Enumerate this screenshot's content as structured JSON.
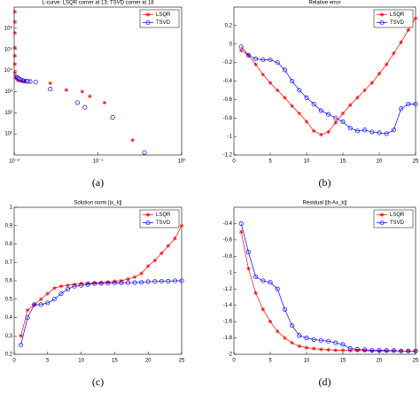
{
  "chart_data": [
    {
      "type": "scatter",
      "title": "L-curve: LSQR corner at 13;  TSVD corner at 18",
      "caption": "(a)",
      "xscale": "log",
      "yscale": "log",
      "xlim": [
        0.01,
        1
      ],
      "xticks": [
        {
          "value": 0.01,
          "label": "10⁻²"
        },
        {
          "value": 0.1,
          "label": "10⁻¹"
        },
        {
          "value": 1,
          "label": "10⁰"
        }
      ],
      "ylim": [
        1,
        10000000
      ],
      "yticks": [
        {
          "value": 10,
          "label": "10¹"
        },
        {
          "value": 100,
          "label": "10²"
        },
        {
          "value": 1000,
          "label": "10³"
        },
        {
          "value": 10000,
          "label": "10⁴"
        },
        {
          "value": 100000,
          "label": "10⁵"
        },
        {
          "value": 1000000,
          "label": "10⁶"
        }
      ],
      "legend": "upper right",
      "series": [
        {
          "name": "LSQR",
          "color": "#ff0000",
          "marker": "star",
          "x": [
            0.0102,
            0.0102,
            0.0102,
            0.0102,
            0.0102,
            0.0102,
            0.0102,
            0.0104,
            0.0107,
            0.011,
            0.0115,
            0.0125,
            0.0135,
            0.027,
            0.042,
            0.065,
            0.08,
            0.12,
            0.26
          ],
          "values": [
            6000000,
            2000000,
            600000,
            120000,
            50000,
            20000,
            8000,
            5000,
            4000,
            3500,
            3300,
            3100,
            3000,
            2500,
            1200,
            1000,
            600,
            300,
            5
          ]
        },
        {
          "name": "TSVD",
          "color": "#0000ff",
          "marker": "circle",
          "x": [
            0.0105,
            0.011,
            0.0115,
            0.012,
            0.0125,
            0.013,
            0.014,
            0.0145,
            0.0155,
            0.018,
            0.027,
            0.057,
            0.07,
            0.15,
            0.36
          ],
          "values": [
            5000,
            4500,
            4000,
            3600,
            3400,
            3200,
            3100,
            3050,
            3000,
            2800,
            1300,
            300,
            180,
            60,
            1.3
          ]
        }
      ]
    },
    {
      "type": "line",
      "title": "Relative error",
      "caption": "(b)",
      "xlim": [
        0,
        25
      ],
      "xticks": [
        0,
        5,
        10,
        15,
        20,
        25
      ],
      "ylim": [
        -1.2,
        0.4
      ],
      "yticks": [
        -1.2,
        -1,
        -0.8,
        -0.6,
        -0.4,
        -0.2,
        0,
        0.2
      ],
      "legend": "upper right",
      "series": [
        {
          "name": "LSQR",
          "color": "#ff0000",
          "marker": "star",
          "x": [
            1,
            2,
            3,
            4,
            5,
            6,
            7,
            8,
            9,
            10,
            11,
            12,
            13,
            14,
            15,
            16,
            17,
            18,
            19,
            20,
            21,
            22,
            23,
            24,
            25
          ],
          "values": [
            -0.07,
            -0.12,
            -0.22,
            -0.33,
            -0.42,
            -0.5,
            -0.58,
            -0.67,
            -0.75,
            -0.84,
            -0.94,
            -0.98,
            -0.95,
            -0.85,
            -0.75,
            -0.66,
            -0.58,
            -0.5,
            -0.42,
            -0.32,
            -0.22,
            -0.1,
            0.02,
            0.15,
            0.28
          ]
        },
        {
          "name": "TSVD",
          "color": "#0000ff",
          "marker": "circle",
          "x": [
            1,
            2,
            3,
            4,
            5,
            6,
            7,
            8,
            9,
            10,
            11,
            12,
            13,
            14,
            15,
            16,
            17,
            18,
            19,
            20,
            21,
            22,
            23,
            24,
            25
          ],
          "values": [
            -0.03,
            -0.12,
            -0.16,
            -0.17,
            -0.17,
            -0.2,
            -0.28,
            -0.4,
            -0.5,
            -0.58,
            -0.65,
            -0.72,
            -0.76,
            -0.8,
            -0.84,
            -0.91,
            -0.94,
            -0.93,
            -0.95,
            -0.96,
            -0.97,
            -0.93,
            -0.7,
            -0.65,
            -0.65
          ]
        }
      ]
    },
    {
      "type": "line",
      "title": "Solution norm ||x_k||",
      "caption": "(c)",
      "xlim": [
        0,
        25
      ],
      "xticks": [
        0,
        5,
        10,
        15,
        20,
        25
      ],
      "ylim": [
        0.2,
        1
      ],
      "yticks": [
        0.2,
        0.3,
        0.4,
        0.5,
        0.6,
        0.7,
        0.8,
        0.9,
        1
      ],
      "legend": "upper right",
      "series": [
        {
          "name": "LSQR",
          "color": "#ff0000",
          "marker": "star",
          "x": [
            1,
            2,
            3,
            4,
            5,
            6,
            7,
            8,
            9,
            10,
            11,
            12,
            13,
            14,
            15,
            16,
            17,
            18,
            19,
            20,
            21,
            22,
            23,
            24,
            25
          ],
          "values": [
            0.3,
            0.44,
            0.47,
            0.5,
            0.53,
            0.56,
            0.57,
            0.575,
            0.58,
            0.585,
            0.587,
            0.588,
            0.59,
            0.593,
            0.597,
            0.6,
            0.61,
            0.62,
            0.64,
            0.68,
            0.71,
            0.75,
            0.79,
            0.83,
            0.9
          ]
        },
        {
          "name": "TSVD",
          "color": "#0000ff",
          "marker": "circle",
          "x": [
            1,
            2,
            3,
            4,
            5,
            6,
            7,
            8,
            9,
            10,
            11,
            12,
            13,
            14,
            15,
            16,
            17,
            18,
            19,
            20,
            21,
            22,
            23,
            24,
            25
          ],
          "values": [
            0.25,
            0.4,
            0.47,
            0.47,
            0.48,
            0.5,
            0.53,
            0.555,
            0.57,
            0.575,
            0.58,
            0.585,
            0.586,
            0.587,
            0.588,
            0.589,
            0.59,
            0.59,
            0.592,
            0.595,
            0.596,
            0.597,
            0.598,
            0.6,
            0.6
          ]
        }
      ]
    },
    {
      "type": "line",
      "title": "Residual ||b-Ax_k||",
      "caption": "(d)",
      "xlim": [
        0,
        25
      ],
      "xticks": [
        0,
        5,
        10,
        15,
        20,
        25
      ],
      "ylim": [
        -2,
        -0.2
      ],
      "yticks": [
        -2,
        -1.8,
        -1.6,
        -1.4,
        -1.2,
        -1,
        -0.8,
        -0.6,
        -0.4
      ],
      "legend": "upper right",
      "series": [
        {
          "name": "LSQR",
          "color": "#ff0000",
          "marker": "star",
          "x": [
            1,
            2,
            3,
            4,
            5,
            6,
            7,
            8,
            9,
            10,
            11,
            12,
            13,
            14,
            15,
            16,
            17,
            18,
            19,
            20,
            21,
            22,
            23,
            24,
            25
          ],
          "values": [
            -0.5,
            -0.95,
            -1.25,
            -1.45,
            -1.6,
            -1.72,
            -1.8,
            -1.86,
            -1.9,
            -1.92,
            -1.93,
            -1.94,
            -1.945,
            -1.95,
            -1.95,
            -1.955,
            -1.955,
            -1.955,
            -1.96,
            -1.96,
            -1.96,
            -1.96,
            -1.96,
            -1.96,
            -1.96
          ]
        },
        {
          "name": "TSVD",
          "color": "#0000ff",
          "marker": "circle",
          "x": [
            1,
            2,
            3,
            4,
            5,
            6,
            7,
            8,
            9,
            10,
            11,
            12,
            13,
            14,
            15,
            16,
            17,
            18,
            19,
            20,
            21,
            22,
            23,
            24,
            25
          ],
          "values": [
            -0.4,
            -0.75,
            -1.05,
            -1.1,
            -1.12,
            -1.2,
            -1.45,
            -1.65,
            -1.77,
            -1.8,
            -1.82,
            -1.83,
            -1.84,
            -1.86,
            -1.88,
            -1.93,
            -1.94,
            -1.945,
            -1.95,
            -1.95,
            -1.955,
            -1.955,
            -1.96,
            -1.96,
            -1.96
          ]
        }
      ]
    }
  ]
}
